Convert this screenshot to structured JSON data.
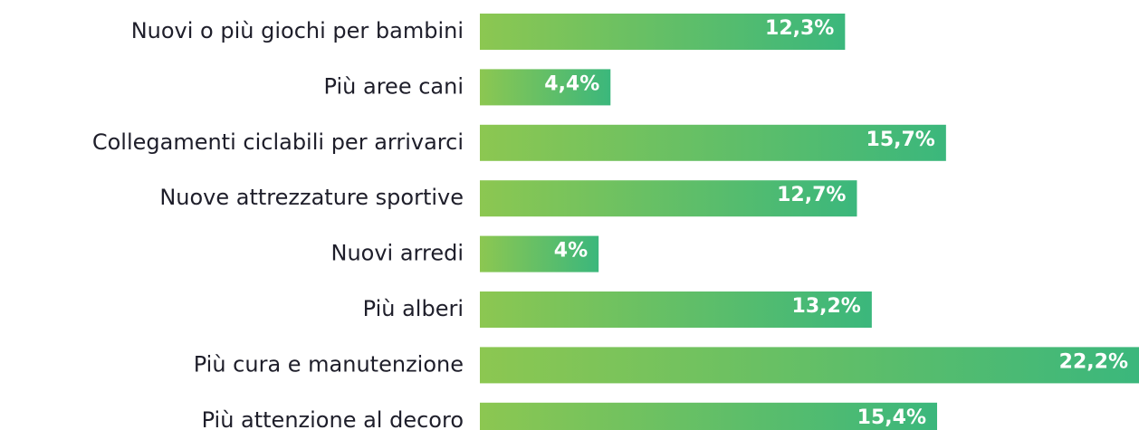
{
  "chart_data": {
    "type": "barh",
    "categories": [
      "Nuovi o più giochi per bambini",
      "Più aree cani",
      "Collegamenti ciclabili per arrivarci",
      "Nuove attrezzature sportive",
      "Nuovi arredi",
      "Più alberi",
      "Più cura e manutenzione",
      "Più attenzione al decoro"
    ],
    "values": [
      12.3,
      4.4,
      15.7,
      12.7,
      4,
      13.2,
      22.2,
      15.4
    ],
    "value_labels": [
      "12,3%",
      "4,4%",
      "15,7%",
      "12,7%",
      "4%",
      "13,2%",
      "22,2%",
      "15,4%"
    ],
    "gradient": [
      "#8cc751",
      "#3bb77c"
    ]
  }
}
